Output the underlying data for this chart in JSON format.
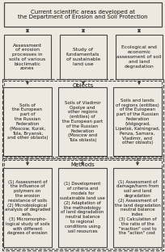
{
  "title": "Current scientific areas developed at\nthe Department of Erosion and Soil Protection",
  "box1": "Assessment\nof erosion\nprocesses in\nsoils of various\nbioclimatic\nzones",
  "box2": "Study of\nfundamentals\nof sustainable\nland use",
  "box3": "Ecological and\neconomic\nassessment of soil\nand land\ndegradation",
  "objects_label": "Objects",
  "obj1": "Soils of\nthe European\npart of\nthe Russian\nFederation\n(Moscow, Kursk,\nTula, Bryansk,\nand other oblasts)",
  "obj2": "Soils of Vladimir\nOpolye and\nother regions\n(entities) of\nthe European part\nof the Russian\nFederation\n(Moscow and\nTula oblasts)",
  "obj3": "Soils and lands\nof regions (entities)\nof the European\npart of the Russian\nFederation\n(Volgograd,\nLipetsk, Kalningrad,\nPenza, Samara,\nVladimir, and\nother oblasts)",
  "methods_label": "Methods",
  "meth1": "(1) Assessment of\nthe influence of\npolymers on\nthe erosion\nresistance of soils\n(2) Microbiological\nanalysis of degraded\nsoils.\n(3) Micromorpho-\nlogical study of soils\nwith different\ndegrees of erosion",
  "meth2": "(1) Development\nof criteria and\nmodels for\nsustainable land use\n(2) Adaptation of\nthe methodology\nof land degradation\nneutral balance\nto regional\nconditions using\nsoil resources",
  "meth3": "(1) Assessment of\ndamage/harm from\nsoil and land\ndegradation\n(2) Assessment of\nthe land degradation\nneutral balance\nindex\n(3) Calculation of\nthe ratio of the\n\"inaction\" cost to\nthe \"action\" cost",
  "bg_color": "#ede8e0",
  "box_fill": "#ede8e0",
  "border_color": "#444444",
  "text_color": "#111111"
}
